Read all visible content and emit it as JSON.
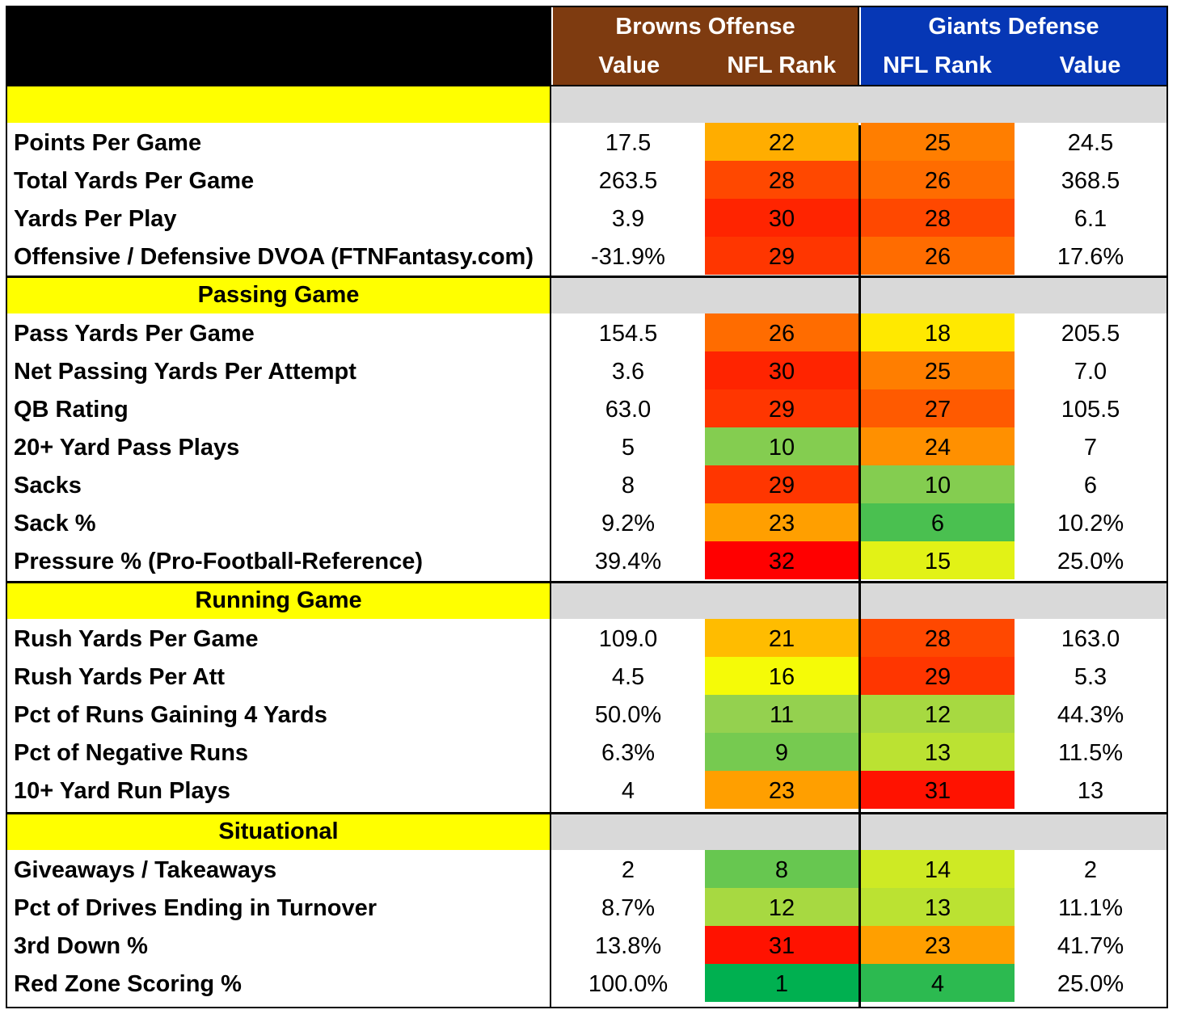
{
  "header": {
    "offense_team": "Browns Offense",
    "defense_team": "Giants Defense",
    "offense_value_label": "Value",
    "offense_rank_label": "NFL Rank",
    "defense_rank_label": "NFL Rank",
    "defense_value_label": "Value"
  },
  "sections": [
    {
      "title": "",
      "rows": [
        {
          "name": "Points Per Game",
          "off_value": "17.5",
          "off_rank": 22,
          "def_rank": 25,
          "def_value": "24.5"
        },
        {
          "name": "Total Yards Per Game",
          "off_value": "263.5",
          "off_rank": 28,
          "def_rank": 26,
          "def_value": "368.5"
        },
        {
          "name": "Yards Per Play",
          "off_value": "3.9",
          "off_rank": 30,
          "def_rank": 28,
          "def_value": "6.1"
        },
        {
          "name": "Offensive / Defensive DVOA (FTNFantasy.com)",
          "off_value": "-31.9%",
          "off_rank": 29,
          "def_rank": 26,
          "def_value": "17.6%"
        }
      ]
    },
    {
      "title": "Passing Game",
      "rows": [
        {
          "name": "Pass Yards Per Game",
          "off_value": "154.5",
          "off_rank": 26,
          "def_rank": 18,
          "def_value": "205.5"
        },
        {
          "name": "Net Passing Yards Per Attempt",
          "off_value": "3.6",
          "off_rank": 30,
          "def_rank": 25,
          "def_value": "7.0"
        },
        {
          "name": "QB Rating",
          "off_value": "63.0",
          "off_rank": 29,
          "def_rank": 27,
          "def_value": "105.5"
        },
        {
          "name": "20+ Yard Pass Plays",
          "off_value": "5",
          "off_rank": 10,
          "def_rank": 24,
          "def_value": "7"
        },
        {
          "name": "Sacks",
          "off_value": "8",
          "off_rank": 29,
          "def_rank": 10,
          "def_value": "6"
        },
        {
          "name": "Sack %",
          "off_value": "9.2%",
          "off_rank": 23,
          "def_rank": 6,
          "def_value": "10.2%"
        },
        {
          "name": "Pressure % (Pro-Football-Reference)",
          "off_value": "39.4%",
          "off_rank": 32,
          "def_rank": 15,
          "def_value": "25.0%"
        }
      ]
    },
    {
      "title": "Running Game",
      "rows": [
        {
          "name": "Rush Yards Per Game",
          "off_value": "109.0",
          "off_rank": 21,
          "def_rank": 28,
          "def_value": "163.0"
        },
        {
          "name": "Rush Yards Per Att",
          "off_value": "4.5",
          "off_rank": 16,
          "def_rank": 29,
          "def_value": "5.3"
        },
        {
          "name": "Pct of Runs Gaining 4 Yards",
          "off_value": "50.0%",
          "off_rank": 11,
          "def_rank": 12,
          "def_value": "44.3%"
        },
        {
          "name": "Pct of Negative Runs",
          "off_value": "6.3%",
          "off_rank": 9,
          "def_rank": 13,
          "def_value": "11.5%"
        },
        {
          "name": "10+ Yard Run Plays",
          "off_value": "4",
          "off_rank": 23,
          "def_rank": 31,
          "def_value": "13"
        }
      ]
    },
    {
      "title": "Situational",
      "rows": [
        {
          "name": "Giveaways / Takeaways",
          "off_value": "2",
          "off_rank": 8,
          "def_rank": 14,
          "def_value": "2"
        },
        {
          "name": "Pct of Drives Ending in Turnover",
          "off_value": "8.7%",
          "off_rank": 12,
          "def_rank": 13,
          "def_value": "11.1%"
        },
        {
          "name": "3rd Down %",
          "off_value": "13.8%",
          "off_rank": 31,
          "def_rank": 23,
          "def_value": "41.7%"
        },
        {
          "name": "Red Zone Scoring %",
          "off_value": "100.0%",
          "off_rank": 1,
          "def_rank": 4,
          "def_value": "25.0%"
        }
      ]
    }
  ],
  "colors": {
    "offense_header": "#7e3b10",
    "defense_header": "#0637b5",
    "section_label": "#ffff00",
    "section_fill": "#d9d9d9"
  }
}
